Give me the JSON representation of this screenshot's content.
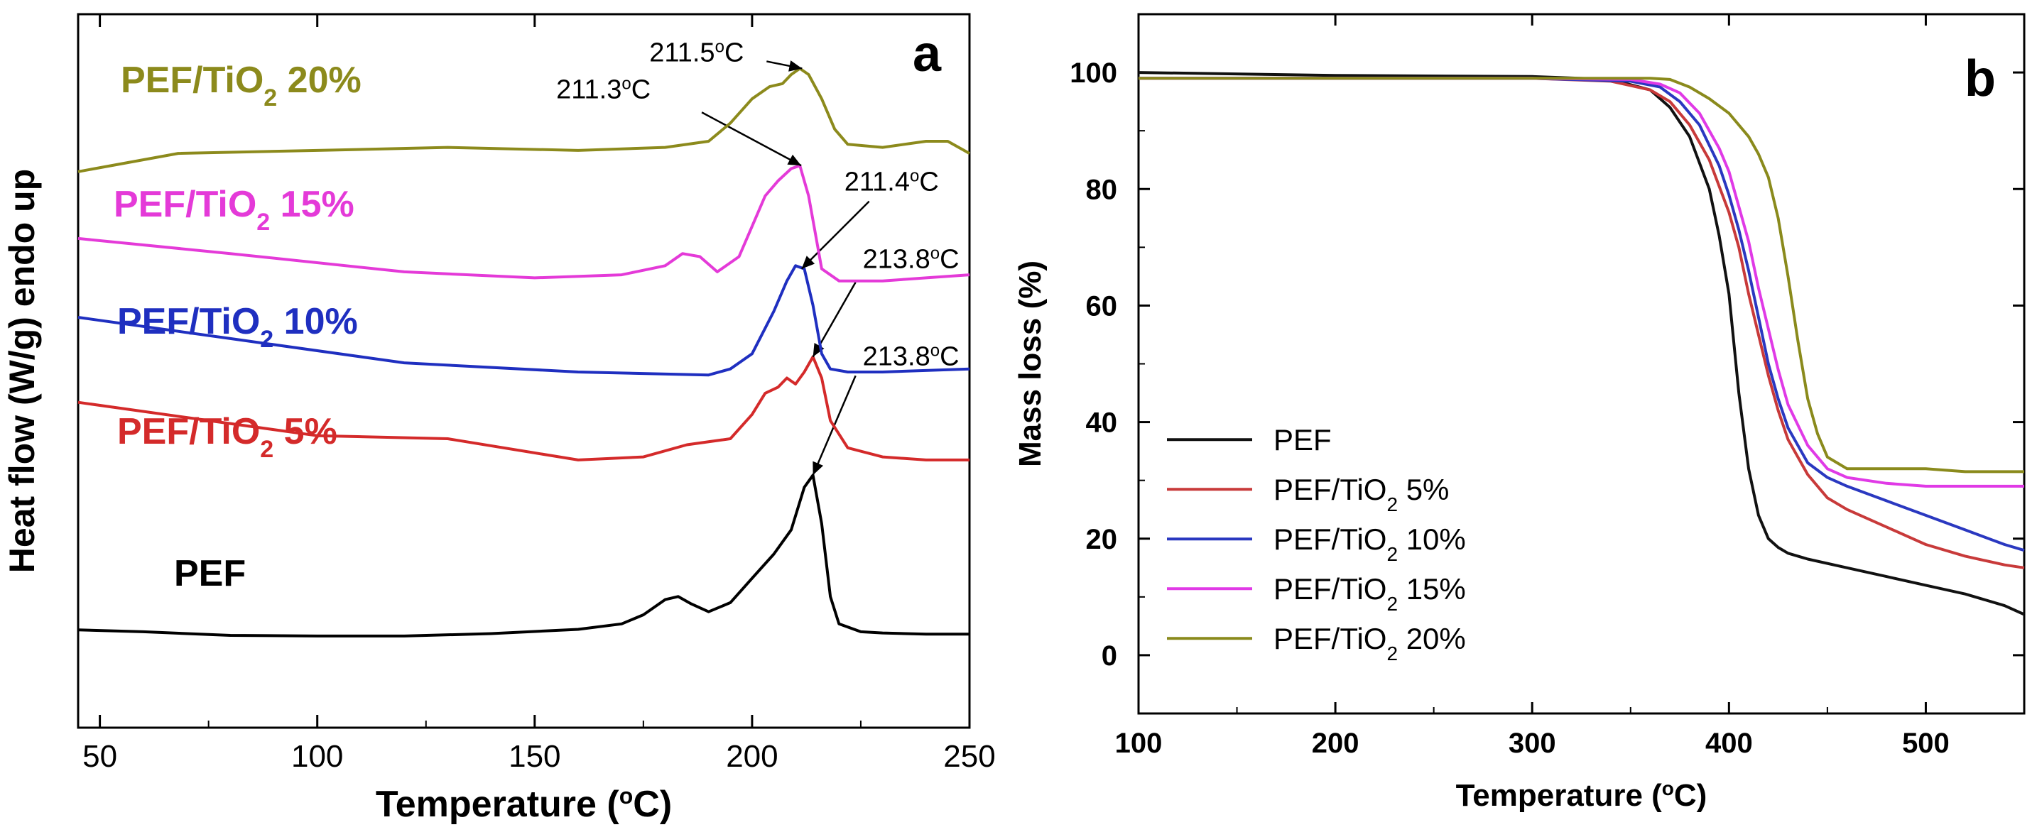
{
  "chart_data": [
    {
      "type": "line",
      "panel_label": "a",
      "xlabel": "Temperature (",
      "xlabel_sup": "o",
      "xlabel_tail": "C)",
      "ylabel": "Heat flow (W/g) endo up",
      "xlim": [
        45,
        250
      ],
      "ylim": [
        0,
        100
      ],
      "y_ticks_shown": false,
      "x_ticks": [
        50,
        100,
        150,
        200,
        250
      ],
      "series": [
        {
          "name": "PEF",
          "label_text": "PEF",
          "color": "#000000",
          "x": [
            45,
            60,
            80,
            100,
            120,
            140,
            160,
            170,
            175,
            180,
            183,
            186,
            190,
            195,
            200,
            205,
            209,
            212,
            214,
            216,
            218,
            220,
            225,
            230,
            240,
            250
          ],
          "y": [
            8.5,
            8.2,
            7.6,
            7.5,
            7.5,
            7.9,
            8.6,
            9.5,
            11,
            13.5,
            14,
            12.8,
            11.5,
            13,
            17,
            21,
            25,
            32,
            34,
            26,
            14,
            9.5,
            8.2,
            8.0,
            7.8,
            7.8
          ],
          "annotation": {
            "text": "213.8",
            "deg": "o",
            "unit": "C",
            "x": 214,
            "y": 34
          }
        },
        {
          "name": "PEF/TiO2 5%",
          "label_main": "PEF/TiO",
          "label_sub": "2",
          "label_tail": " 5%",
          "color": "#d42a2a",
          "x": [
            45,
            70,
            100,
            130,
            160,
            175,
            185,
            195,
            200,
            203,
            206,
            208,
            210,
            212,
            214,
            216,
            218,
            222,
            230,
            240,
            250
          ],
          "y": [
            46,
            43.5,
            40.5,
            40,
            36.5,
            37,
            39,
            40,
            44,
            47.5,
            48.5,
            50,
            49,
            51,
            53.5,
            50,
            43,
            38.5,
            37,
            36.5,
            36.5
          ],
          "annotation": {
            "text": "213.8",
            "deg": "o",
            "unit": "C",
            "x": 214,
            "y": 53.5
          }
        },
        {
          "name": "PEF/TiO2 10%",
          "label_main": "PEF/TiO",
          "label_sub": "2",
          "label_tail": " 10%",
          "color": "#1f2fc0",
          "x": [
            45,
            80,
            120,
            160,
            190,
            195,
            200,
            205,
            208,
            210,
            212,
            214,
            216,
            218,
            222,
            230,
            250
          ],
          "y": [
            60,
            56.5,
            52.5,
            51,
            50.5,
            51.5,
            54,
            61,
            66,
            68.5,
            68,
            62,
            54,
            51.5,
            51,
            51,
            51.5
          ],
          "annotation": {
            "text": "211.4",
            "deg": "o",
            "unit": "C",
            "x": 211.4,
            "y": 68
          }
        },
        {
          "name": "PEF/TiO2 15%",
          "label_main": "PEF/TiO",
          "label_sub": "2",
          "label_tail": " 15%",
          "color": "#e43ad8",
          "x": [
            45,
            80,
            120,
            150,
            170,
            180,
            184,
            188,
            192,
            197,
            200,
            203,
            206,
            209,
            211,
            213,
            216,
            220,
            230,
            240,
            250
          ],
          "y": [
            73,
            70.5,
            67.5,
            66.5,
            67,
            68.5,
            70.5,
            70,
            67.5,
            70,
            75,
            80,
            82.5,
            84.5,
            85,
            80,
            68,
            66,
            66,
            66.5,
            67
          ],
          "annotation": {
            "text": "211.3",
            "deg": "o",
            "unit": "C",
            "x": 211.3,
            "y": 85
          }
        },
        {
          "name": "PEF/TiO2 20%",
          "label_main": "PEF/TiO",
          "label_sub": "2",
          "label_tail": " 20%",
          "color": "#8c8a1c",
          "x": [
            45,
            68,
            100,
            130,
            160,
            180,
            190,
            195,
            200,
            204,
            207,
            209,
            211,
            213,
            216,
            219,
            222,
            230,
            240,
            245,
            250
          ],
          "y": [
            84,
            87,
            87.5,
            88,
            87.5,
            88,
            89,
            92,
            96,
            98,
            98.5,
            100,
            101,
            100,
            96,
            91,
            88.5,
            88,
            89,
            89,
            87
          ],
          "annotation": {
            "text": "211.5",
            "deg": "o",
            "unit": "C",
            "x": 211.5,
            "y": 101
          }
        }
      ]
    },
    {
      "type": "line",
      "panel_label": "b",
      "xlabel": "Temperature (",
      "xlabel_sup": "o",
      "xlabel_tail": "C)",
      "ylabel": "Mass loss (%)",
      "xlim": [
        100,
        550
      ],
      "ylim": [
        -10,
        110
      ],
      "x_ticks": [
        100,
        200,
        300,
        400,
        500
      ],
      "y_ticks": [
        0,
        20,
        40,
        60,
        80,
        100
      ],
      "legend_position": "bottom-left",
      "series": [
        {
          "name": "PEF",
          "legend_main": "PEF",
          "legend_sub": "",
          "legend_tail": "",
          "color": "#111111",
          "x": [
            100,
            200,
            300,
            340,
            360,
            370,
            380,
            390,
            395,
            400,
            405,
            410,
            415,
            420,
            425,
            430,
            440,
            460,
            480,
            500,
            520,
            540,
            550
          ],
          "y": [
            100,
            99.5,
            99.3,
            98.8,
            97,
            94,
            89,
            80,
            72,
            62,
            45,
            32,
            24,
            20,
            18.5,
            17.5,
            16.5,
            15,
            13.5,
            12,
            10.5,
            8.5,
            7
          ]
        },
        {
          "name": "PEF/TiO2 5%",
          "legend_main": "PEF/TiO",
          "legend_sub": "2",
          "legend_tail": " 5%",
          "color": "#c83a3a",
          "x": [
            100,
            200,
            300,
            340,
            360,
            370,
            380,
            390,
            400,
            405,
            410,
            415,
            420,
            425,
            430,
            440,
            450,
            460,
            480,
            500,
            520,
            540,
            550
          ],
          "y": [
            99,
            99,
            99,
            98.5,
            97,
            95,
            91,
            85,
            76,
            70,
            62,
            55,
            48,
            42,
            37,
            31,
            27,
            25,
            22,
            19,
            17,
            15.5,
            15
          ]
        },
        {
          "name": "PEF/TiO2 10%",
          "legend_main": "PEF/TiO",
          "legend_sub": "2",
          "legend_tail": " 10%",
          "color": "#2a38c0",
          "x": [
            100,
            200,
            300,
            350,
            365,
            375,
            385,
            395,
            400,
            405,
            410,
            415,
            420,
            425,
            430,
            440,
            450,
            460,
            480,
            500,
            520,
            540,
            550
          ],
          "y": [
            99,
            99,
            99,
            98.5,
            97.5,
            95,
            91,
            84,
            79,
            73,
            66,
            58,
            50,
            44,
            39,
            33,
            30.5,
            29,
            26.5,
            24,
            21.5,
            19,
            18
          ]
        },
        {
          "name": "PEF/TiO2 15%",
          "legend_main": "PEF/TiO",
          "legend_sub": "2",
          "legend_tail": " 15%",
          "color": "#e03ae6",
          "x": [
            100,
            200,
            300,
            350,
            365,
            375,
            385,
            395,
            400,
            405,
            410,
            415,
            420,
            425,
            430,
            440,
            450,
            460,
            480,
            500,
            520,
            540,
            550
          ],
          "y": [
            99,
            99,
            99,
            98.8,
            98,
            96.5,
            93,
            87,
            83,
            77,
            71,
            63,
            56,
            49,
            43,
            36,
            32,
            30.5,
            29.5,
            29,
            29,
            29,
            29
          ]
        },
        {
          "name": "PEF/TiO2 20%",
          "legend_main": "PEF/TiO",
          "legend_sub": "2",
          "legend_tail": " 20%",
          "color": "#8a8a1c",
          "x": [
            100,
            200,
            300,
            360,
            370,
            380,
            390,
            400,
            410,
            415,
            420,
            425,
            430,
            435,
            440,
            445,
            450,
            455,
            460,
            480,
            500,
            520,
            540,
            550
          ],
          "y": [
            99,
            99,
            99,
            99,
            98.8,
            97.5,
            95.5,
            93,
            89,
            86,
            82,
            75,
            65,
            54,
            44,
            38,
            34,
            33,
            32,
            32,
            32,
            31.5,
            31.5,
            31.5
          ]
        }
      ]
    }
  ]
}
